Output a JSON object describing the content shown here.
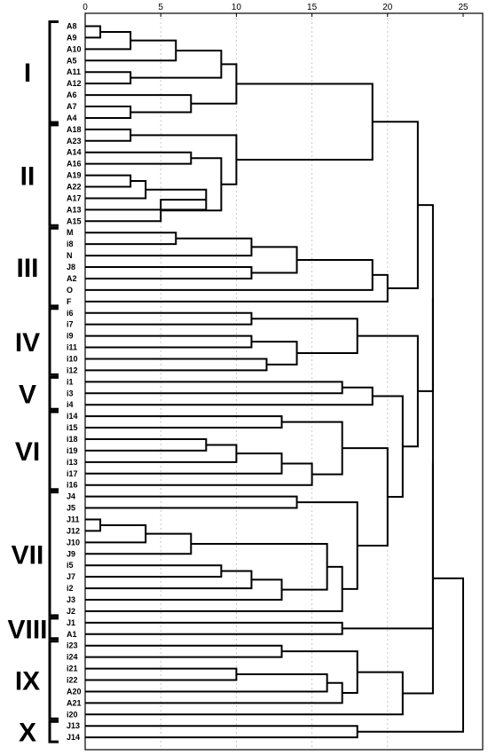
{
  "chart_data": {
    "type": "dendrogram",
    "x_ticks": [
      0,
      5,
      10,
      15,
      20,
      25
    ],
    "xlim": [
      0,
      25
    ],
    "grid": true,
    "leaves": [
      "A8",
      "A9",
      "A10",
      "A5",
      "A11",
      "A12",
      "A6",
      "A7",
      "A4",
      "A18",
      "A23",
      "A14",
      "A16",
      "A19",
      "A22",
      "A17",
      "A13",
      "A15",
      "M",
      "i8",
      "N",
      "J8",
      "A2",
      "O",
      "F",
      "i6",
      "i7",
      "i9",
      "i11",
      "i10",
      "i12",
      "i1",
      "i3",
      "i4",
      "i14",
      "i15",
      "i18",
      "i19",
      "i13",
      "i17",
      "i16",
      "J4",
      "J5",
      "J11",
      "J12",
      "J10",
      "J9",
      "i5",
      "J7",
      "i2",
      "J3",
      "J2",
      "J1",
      "A1",
      "i23",
      "i24",
      "i21",
      "i22",
      "A20",
      "A21",
      "i20",
      "J13",
      "J14"
    ],
    "groups": [
      {
        "label": "I",
        "first": 0,
        "last": 8
      },
      {
        "label": "II",
        "first": 9,
        "last": 17
      },
      {
        "label": "III",
        "first": 18,
        "last": 24
      },
      {
        "label": "IV",
        "first": 25,
        "last": 30
      },
      {
        "label": "V",
        "first": 31,
        "last": 33
      },
      {
        "label": "VI",
        "first": 34,
        "last": 40
      },
      {
        "label": "VII",
        "first": 41,
        "last": 51
      },
      {
        "label": "VIII",
        "first": 52,
        "last": 53
      },
      {
        "label": "IX",
        "first": 54,
        "last": 60
      },
      {
        "label": "X",
        "first": 61,
        "last": 62
      }
    ],
    "merges": [
      {
        "id": "n1",
        "a": "A8",
        "b": "A9",
        "h": 1
      },
      {
        "id": "n2",
        "a": "n1",
        "b": "A10",
        "h": 3
      },
      {
        "id": "n3",
        "a": "n2",
        "b": "A5",
        "h": 6
      },
      {
        "id": "n4",
        "a": "A11",
        "b": "A12",
        "h": 3
      },
      {
        "id": "n5",
        "a": "n3",
        "b": "n4",
        "h": 9
      },
      {
        "id": "n6",
        "a": "A7",
        "b": "A4",
        "h": 3
      },
      {
        "id": "n7",
        "a": "A6",
        "b": "n6",
        "h": 7
      },
      {
        "id": "n8",
        "a": "n5",
        "b": "n7",
        "h": 10
      },
      {
        "id": "n9",
        "a": "A18",
        "b": "A23",
        "h": 3
      },
      {
        "id": "n10",
        "a": "A14",
        "b": "A16",
        "h": 7
      },
      {
        "id": "n11",
        "a": "A19",
        "b": "A22",
        "h": 3
      },
      {
        "id": "n12",
        "a": "n11",
        "b": "A17",
        "h": 4
      },
      {
        "id": "n13",
        "a": "n12",
        "b": "A13",
        "h": 8
      },
      {
        "id": "n14",
        "a": "n13",
        "b": "A15",
        "h": 5
      },
      {
        "id": "n15",
        "a": "n10",
        "b": "n14",
        "h": 9
      },
      {
        "id": "n16",
        "a": "n9",
        "b": "n15",
        "h": 10
      },
      {
        "id": "n17",
        "a": "n8",
        "b": "n16",
        "h": 19
      },
      {
        "id": "n18",
        "a": "M",
        "b": "i8",
        "h": 6
      },
      {
        "id": "n19",
        "a": "n18",
        "b": "N",
        "h": 11
      },
      {
        "id": "n20",
        "a": "J8",
        "b": "A2",
        "h": 11
      },
      {
        "id": "n21",
        "a": "n19",
        "b": "n20",
        "h": 14
      },
      {
        "id": "n22",
        "a": "n21",
        "b": "O",
        "h": 19
      },
      {
        "id": "n23",
        "a": "n22",
        "b": "F",
        "h": 20
      },
      {
        "id": "n24",
        "a": "n17",
        "b": "n23",
        "h": 22
      },
      {
        "id": "n25",
        "a": "i6",
        "b": "i7",
        "h": 11
      },
      {
        "id": "n26",
        "a": "i9",
        "b": "i11",
        "h": 11
      },
      {
        "id": "n27",
        "a": "i10",
        "b": "i12",
        "h": 12
      },
      {
        "id": "n28",
        "a": "n26",
        "b": "n27",
        "h": 14
      },
      {
        "id": "n29",
        "a": "n25",
        "b": "n28",
        "h": 18
      },
      {
        "id": "n30",
        "a": "i1",
        "b": "i3",
        "h": 17
      },
      {
        "id": "n31",
        "a": "n30",
        "b": "i4",
        "h": 19
      },
      {
        "id": "n32",
        "a": "i14",
        "b": "i15",
        "h": 13
      },
      {
        "id": "n33",
        "a": "i18",
        "b": "i19",
        "h": 8
      },
      {
        "id": "n34",
        "a": "n33",
        "b": "i13",
        "h": 10
      },
      {
        "id": "n35",
        "a": "n34",
        "b": "i17",
        "h": 13
      },
      {
        "id": "n36",
        "a": "n35",
        "b": "i16",
        "h": 15
      },
      {
        "id": "n37",
        "a": "n32",
        "b": "n36",
        "h": 17
      },
      {
        "id": "n38",
        "a": "J4",
        "b": "J5",
        "h": 14
      },
      {
        "id": "n39",
        "a": "J11",
        "b": "J12",
        "h": 1
      },
      {
        "id": "n40",
        "a": "n39",
        "b": "J10",
        "h": 4
      },
      {
        "id": "n41",
        "a": "n40",
        "b": "J9",
        "h": 7
      },
      {
        "id": "n42",
        "a": "i5",
        "b": "J7",
        "h": 9
      },
      {
        "id": "n43",
        "a": "n42",
        "b": "i2",
        "h": 11
      },
      {
        "id": "n44",
        "a": "n43",
        "b": "J3",
        "h": 13
      },
      {
        "id": "n45",
        "a": "n41",
        "b": "n44",
        "h": 16
      },
      {
        "id": "n46",
        "a": "n45",
        "b": "J2",
        "h": 17
      },
      {
        "id": "n47",
        "a": "n38",
        "b": "n46",
        "h": 18
      },
      {
        "id": "n48",
        "a": "n37",
        "b": "n47",
        "h": 20
      },
      {
        "id": "n49",
        "a": "n31",
        "b": "n48",
        "h": 21
      },
      {
        "id": "n50",
        "a": "n29",
        "b": "n49",
        "h": 22
      },
      {
        "id": "n51",
        "a": "n24",
        "b": "n50",
        "h": 23
      },
      {
        "id": "n52",
        "a": "J1",
        "b": "A1",
        "h": 17
      },
      {
        "id": "n53",
        "a": "n51",
        "b": "n52",
        "h": 23
      },
      {
        "id": "n54",
        "a": "i23",
        "b": "i24",
        "h": 13
      },
      {
        "id": "n55",
        "a": "i21",
        "b": "i22",
        "h": 10
      },
      {
        "id": "n56",
        "a": "n55",
        "b": "A20",
        "h": 16
      },
      {
        "id": "n57",
        "a": "n56",
        "b": "A21",
        "h": 17
      },
      {
        "id": "n58",
        "a": "n54",
        "b": "n57",
        "h": 18
      },
      {
        "id": "n59",
        "a": "n58",
        "b": "i20",
        "h": 21
      },
      {
        "id": "n60",
        "a": "n53",
        "b": "n59",
        "h": 23
      },
      {
        "id": "n61",
        "a": "J13",
        "b": "J14",
        "h": 18
      },
      {
        "id": "n62",
        "a": "n60",
        "b": "n61",
        "h": 25
      }
    ]
  }
}
